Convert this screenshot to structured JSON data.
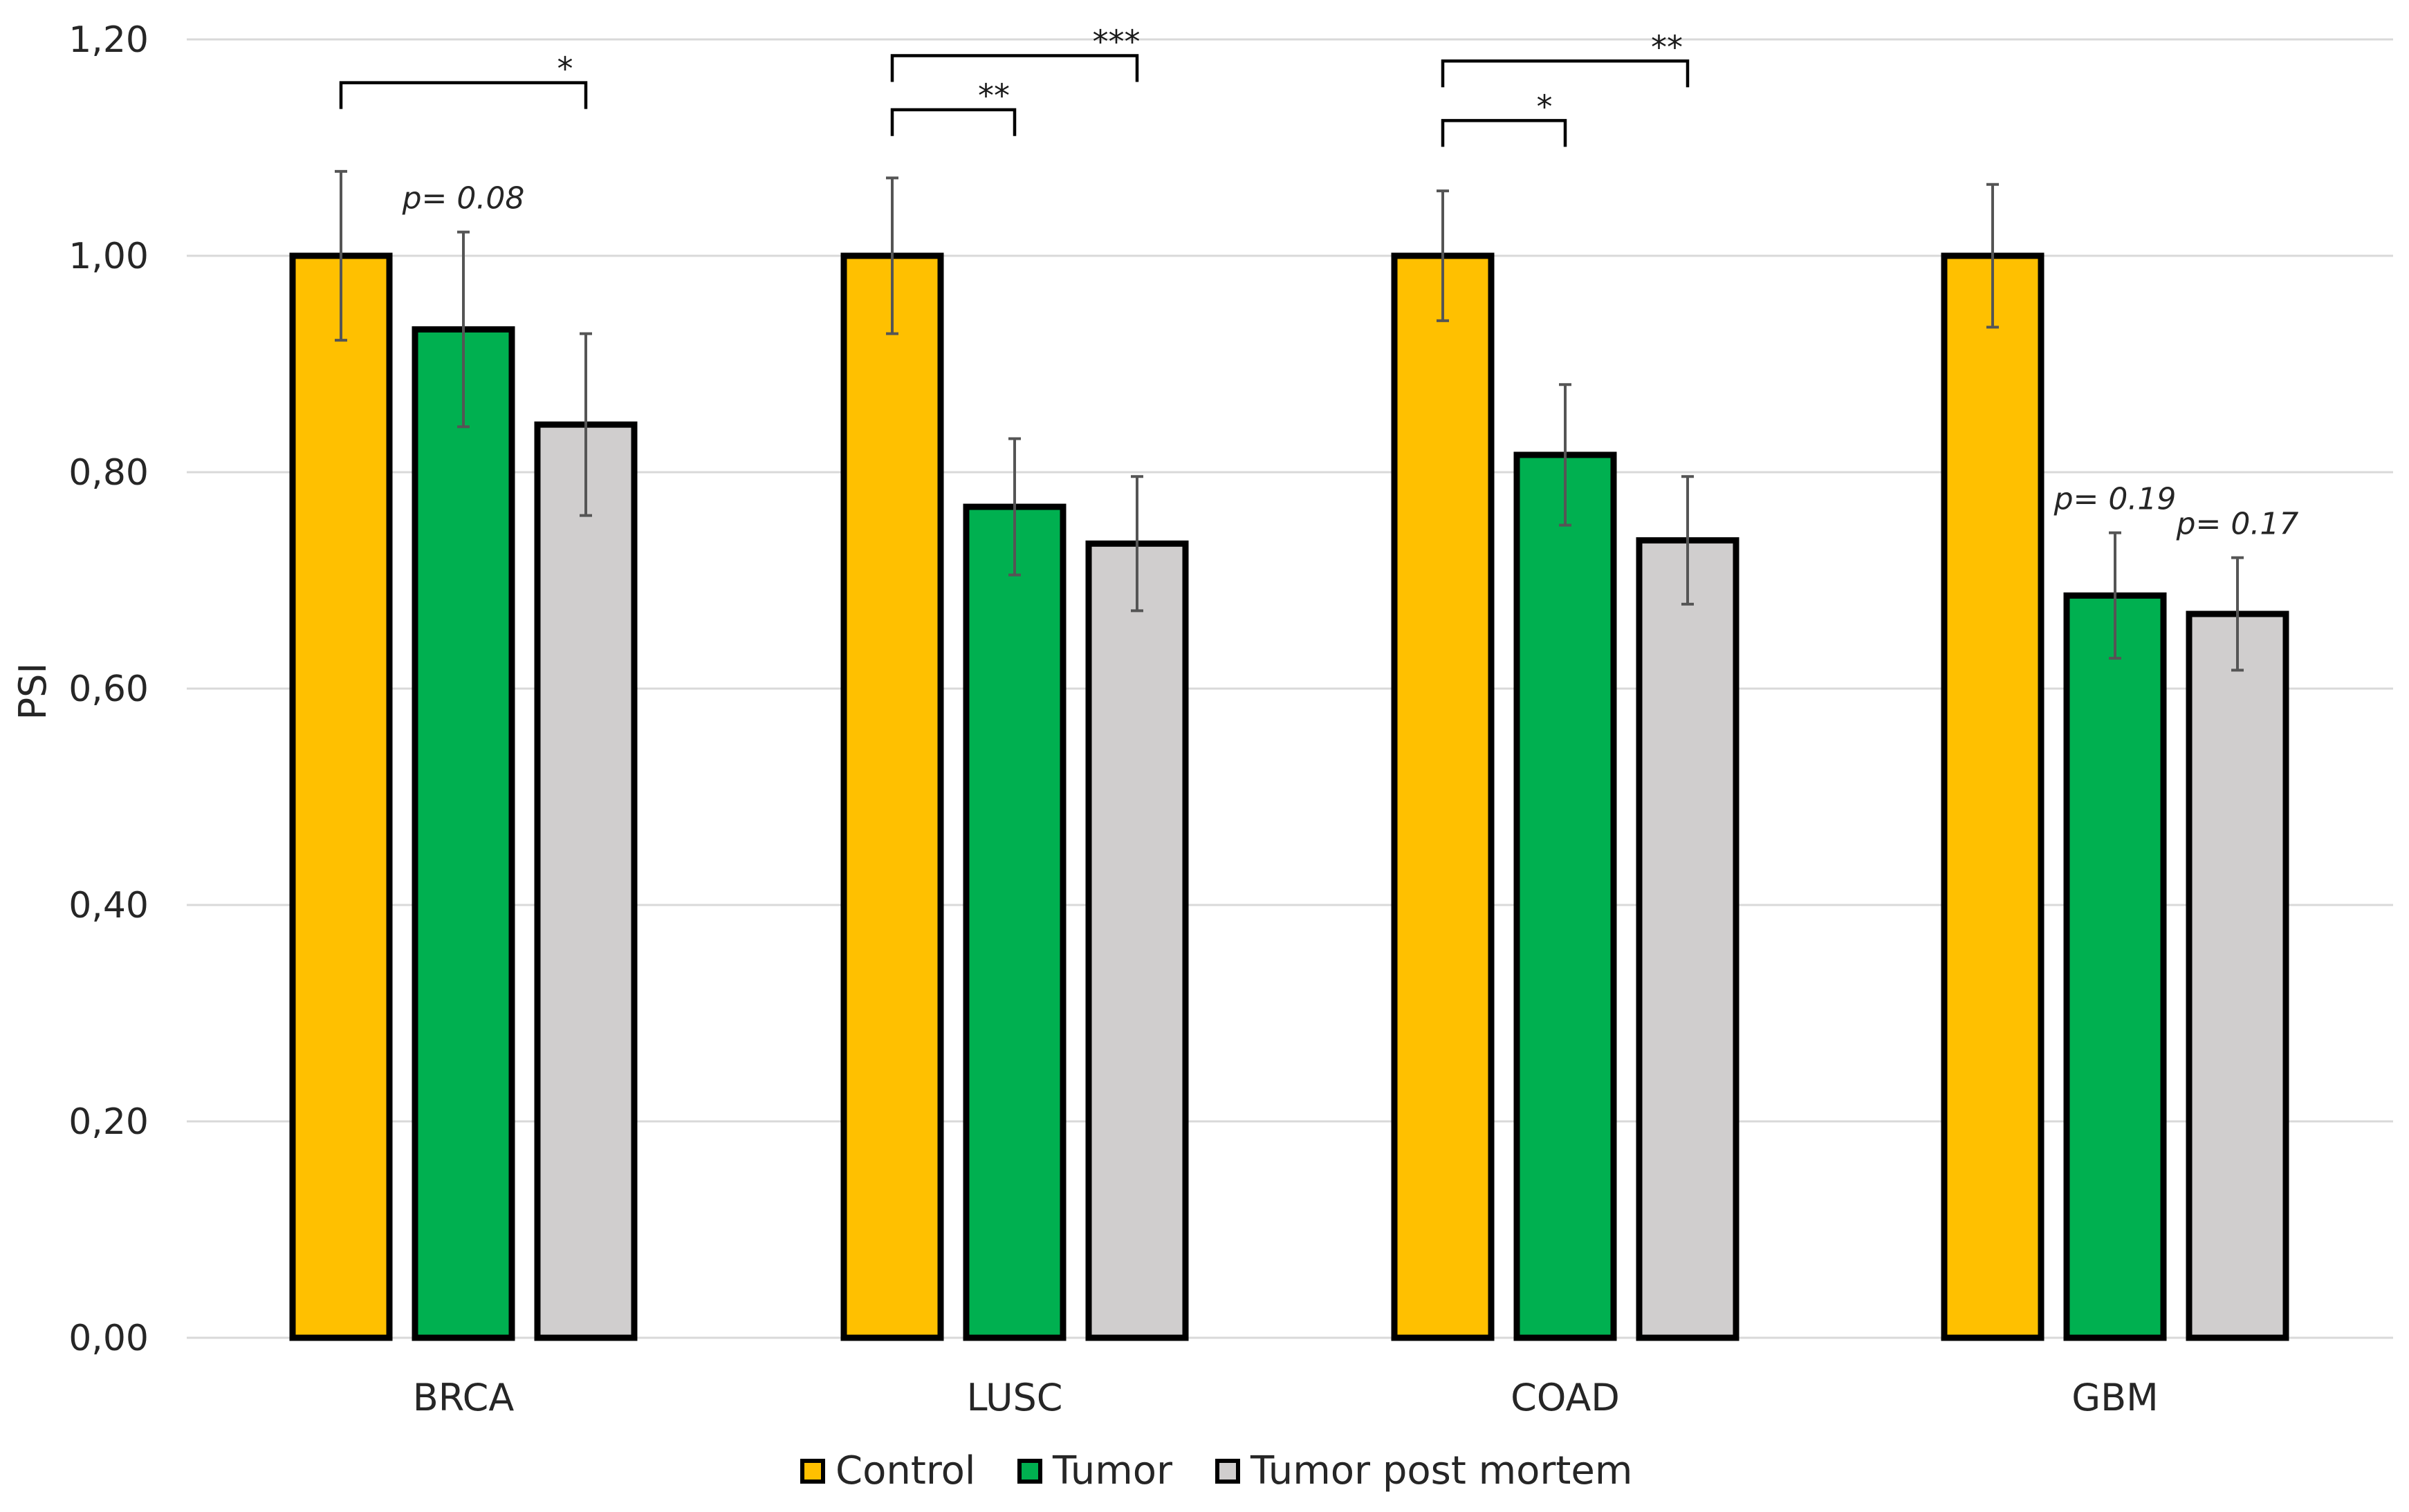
{
  "chart_data": {
    "type": "bar",
    "title": "",
    "xlabel": "",
    "ylabel": "PSI",
    "ylim": [
      0,
      1.2
    ],
    "yticks": [
      "0,00",
      "0,20",
      "0,40",
      "0,60",
      "0,80",
      "1,00",
      "1,20"
    ],
    "ytick_values": [
      0,
      0.2,
      0.4,
      0.6,
      0.8,
      1.0,
      1.2
    ],
    "categories": [
      "BRCA",
      "LUSC",
      "COAD",
      "GBM"
    ],
    "series": [
      {
        "name": "Control",
        "color": "#FFC000",
        "values": [
          1.0,
          1.0,
          1.0,
          1.0
        ],
        "errors": [
          0.078,
          0.072,
          0.06,
          0.066
        ]
      },
      {
        "name": "Tumor",
        "color": "#00B050",
        "values": [
          0.932,
          0.768,
          0.816,
          0.686
        ],
        "errors": [
          0.09,
          0.063,
          0.065,
          0.058
        ]
      },
      {
        "name": "Tumor post mortem",
        "color": "#D0CECE",
        "values": [
          0.844,
          0.734,
          0.737,
          0.669
        ],
        "errors": [
          0.084,
          0.062,
          0.059,
          0.052
        ]
      }
    ],
    "grid": true,
    "legend_position": "bottom",
    "annotations": {
      "pvalues": [
        {
          "text": "p= 0.08",
          "category": 0,
          "series": 1
        },
        {
          "text": "p= 0.19",
          "category": 3,
          "series": 1
        },
        {
          "text": "p= 0.17",
          "category": 3,
          "series": 2
        }
      ],
      "brackets": [
        {
          "category": 0,
          "from": 0,
          "to": 2,
          "y": 1.16,
          "label": "*"
        },
        {
          "category": 1,
          "from": 0,
          "to": 1,
          "y": 1.135,
          "label": "**"
        },
        {
          "category": 1,
          "from": 0,
          "to": 2,
          "y": 1.185,
          "label": "***"
        },
        {
          "category": 2,
          "from": 0,
          "to": 1,
          "y": 1.125,
          "label": "*"
        },
        {
          "category": 2,
          "from": 0,
          "to": 2,
          "y": 1.18,
          "label": "**"
        }
      ]
    }
  }
}
